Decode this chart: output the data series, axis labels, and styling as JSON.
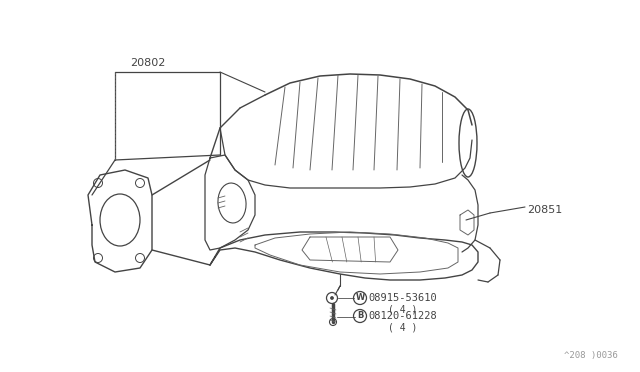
{
  "bg_color": "#ffffff",
  "line_color": "#444444",
  "light_line": "#666666",
  "label_20802": "20802",
  "label_20851": "20851",
  "label_w_circle": "W",
  "label_w_part": "08915-53610",
  "label_w_qty": "( 4 )",
  "label_b_circle": "B",
  "label_b_part": "08120-61228",
  "label_b_qty": "( 4 )",
  "watermark": "^208 )0036",
  "fig_width": 6.4,
  "fig_height": 3.72,
  "dpi": 100
}
